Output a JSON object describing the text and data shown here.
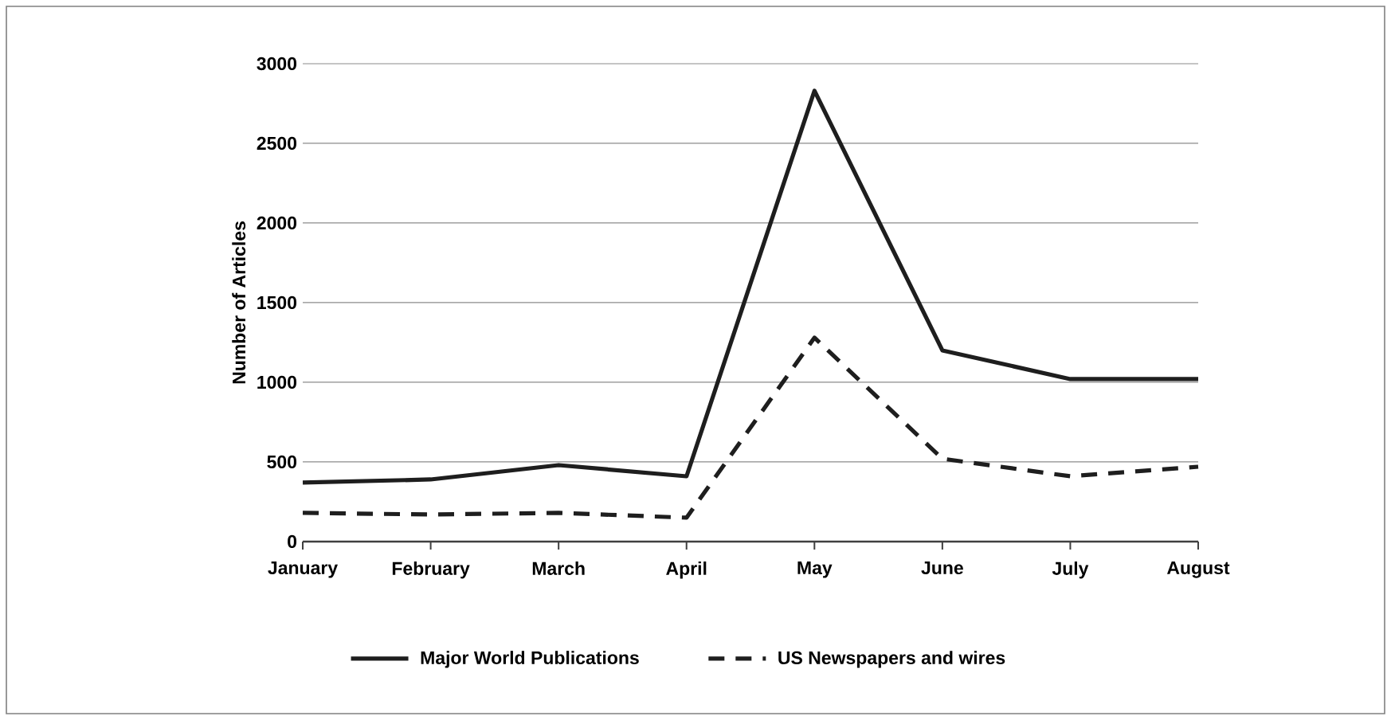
{
  "chart_data": {
    "type": "line",
    "ylabel": "Number of Articles",
    "categories": [
      "January",
      "February",
      "March",
      "April",
      "May",
      "June",
      "July",
      "August"
    ],
    "series": [
      {
        "name": "Major World Publications",
        "color": "#1e1e1e",
        "line_style": "solid",
        "values": [
          370,
          390,
          480,
          410,
          2830,
          1200,
          1020,
          1020
        ]
      },
      {
        "name": "US Newspapers and wires",
        "color": "#1e1e1e",
        "line_style": "dashed",
        "values": [
          180,
          170,
          180,
          150,
          1280,
          520,
          410,
          470
        ]
      }
    ],
    "ylim": [
      0,
      3000
    ],
    "yticks": [
      0,
      500,
      1000,
      1500,
      2000,
      2500,
      3000
    ],
    "grid": "y",
    "legend": "bottom",
    "marker": "none"
  }
}
